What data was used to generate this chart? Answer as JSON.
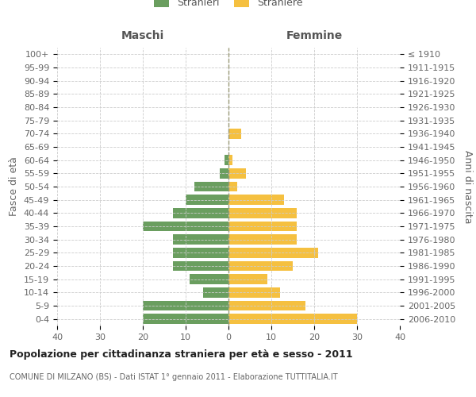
{
  "age_groups": [
    "0-4",
    "5-9",
    "10-14",
    "15-19",
    "20-24",
    "25-29",
    "30-34",
    "35-39",
    "40-44",
    "45-49",
    "50-54",
    "55-59",
    "60-64",
    "65-69",
    "70-74",
    "75-79",
    "80-84",
    "85-89",
    "90-94",
    "95-99",
    "100+"
  ],
  "birth_years": [
    "2006-2010",
    "2001-2005",
    "1996-2000",
    "1991-1995",
    "1986-1990",
    "1981-1985",
    "1976-1980",
    "1971-1975",
    "1966-1970",
    "1961-1965",
    "1956-1960",
    "1951-1955",
    "1946-1950",
    "1941-1945",
    "1936-1940",
    "1931-1935",
    "1926-1930",
    "1921-1925",
    "1916-1920",
    "1911-1915",
    "≤ 1910"
  ],
  "maschi": [
    20,
    20,
    6,
    9,
    13,
    13,
    13,
    20,
    13,
    10,
    8,
    2,
    1,
    0,
    0,
    0,
    0,
    0,
    0,
    0,
    0
  ],
  "femmine": [
    30,
    18,
    12,
    9,
    15,
    21,
    16,
    16,
    16,
    13,
    2,
    4,
    1,
    0,
    3,
    0,
    0,
    0,
    0,
    0,
    0
  ],
  "male_color": "#6a9e5f",
  "female_color": "#f5c040",
  "title": "Popolazione per cittadinanza straniera per età e sesso - 2011",
  "subtitle": "COMUNE DI MILZANO (BS) - Dati ISTAT 1° gennaio 2011 - Elaborazione TUTTITALIA.IT",
  "xlabel_left": "Maschi",
  "xlabel_right": "Femmine",
  "ylabel_left": "Fasce di età",
  "ylabel_right": "Anni di nascita",
  "legend_stranieri": "Stranieri",
  "legend_straniere": "Straniere",
  "xlim": 40,
  "background_color": "#ffffff",
  "grid_color": "#cccccc"
}
